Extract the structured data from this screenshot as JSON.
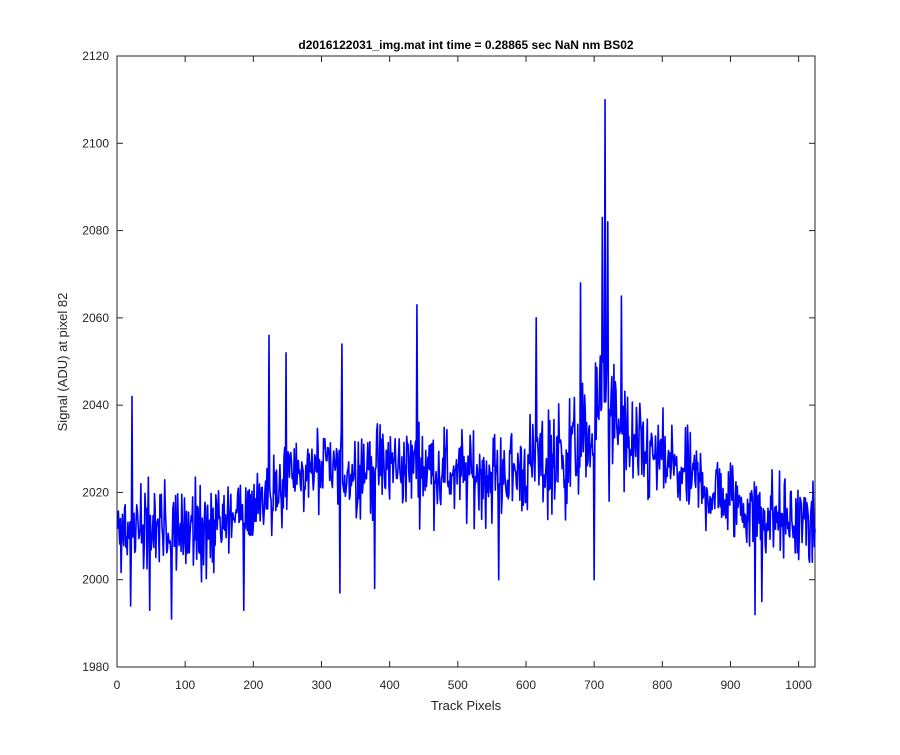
{
  "figure": {
    "background": "#ffffff"
  },
  "chart_data": {
    "type": "line",
    "title": "d2016122031_img.mat int time = 0.28865 sec  NaN nm BS02",
    "xlabel": "Track Pixels",
    "ylabel": "Signal (ADU) at pixel 82",
    "xlim": [
      0,
      1024
    ],
    "ylim": [
      1980,
      2120
    ],
    "xticks": [
      0,
      100,
      200,
      300,
      400,
      500,
      600,
      700,
      800,
      900,
      1000
    ],
    "yticks": [
      1980,
      2000,
      2020,
      2040,
      2060,
      2080,
      2100,
      2120
    ],
    "grid": false,
    "legend": "none",
    "line_color": "#0000ff",
    "series_profile": {
      "x": [
        0,
        50,
        100,
        150,
        200,
        250,
        300,
        350,
        400,
        450,
        500,
        550,
        600,
        650,
        700,
        715,
        730,
        750,
        800,
        850,
        900,
        950,
        1000,
        1024
      ],
      "y": [
        2010,
        2011,
        2011,
        2012,
        2017,
        2024,
        2025,
        2025,
        2026,
        2026,
        2024,
        2024,
        2025,
        2028,
        2033,
        2048,
        2035,
        2030,
        2027,
        2022,
        2018,
        2015,
        2013,
        2014
      ]
    },
    "noise_amplitude": 9,
    "notable_points": [
      {
        "x": 8,
        "y": 2015
      },
      {
        "x": 20,
        "y": 1994
      },
      {
        "x": 22,
        "y": 2042
      },
      {
        "x": 48,
        "y": 1993
      },
      {
        "x": 80,
        "y": 1991
      },
      {
        "x": 186,
        "y": 1993
      },
      {
        "x": 223,
        "y": 2056
      },
      {
        "x": 248,
        "y": 2052
      },
      {
        "x": 327,
        "y": 1997
      },
      {
        "x": 330,
        "y": 2054
      },
      {
        "x": 378,
        "y": 1998
      },
      {
        "x": 440,
        "y": 2063
      },
      {
        "x": 560,
        "y": 2000
      },
      {
        "x": 615,
        "y": 2060
      },
      {
        "x": 680,
        "y": 2068
      },
      {
        "x": 700,
        "y": 2000
      },
      {
        "x": 712,
        "y": 2083
      },
      {
        "x": 716,
        "y": 2110
      },
      {
        "x": 720,
        "y": 2082
      },
      {
        "x": 722,
        "y": 2018
      },
      {
        "x": 740,
        "y": 2065
      },
      {
        "x": 936,
        "y": 1992
      },
      {
        "x": 946,
        "y": 1995
      },
      {
        "x": 1020,
        "y": 2004
      }
    ]
  }
}
